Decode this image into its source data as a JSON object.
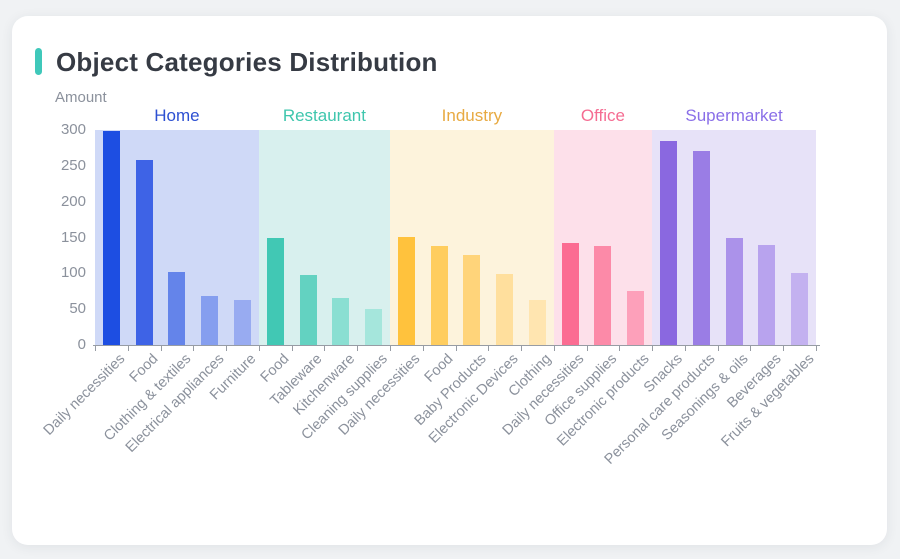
{
  "page": {
    "background": "#f0f2f4",
    "card_background": "#ffffff"
  },
  "header": {
    "title": "Object Categories Distribution",
    "accent_color": "#3fc8ba",
    "title_color": "#363b44"
  },
  "chart_data": {
    "type": "bar",
    "title": "Object Categories Distribution",
    "xlabel": "",
    "ylabel": "Amount",
    "ylim": [
      0,
      300
    ],
    "y_ticks": [
      0,
      50,
      100,
      150,
      200,
      250,
      300
    ],
    "grid": false,
    "legend_position": "none",
    "axis_color": "#979ca4",
    "text_color": "#8b919c",
    "groups": [
      {
        "name": "Home",
        "label_color": "#2d50d2",
        "panel_color": "#cfd9f7",
        "categories": [
          "Daily necessities",
          "Food",
          "Clothing & textiles",
          "Electrical appliances",
          "Furniture"
        ],
        "values": [
          298,
          258,
          102,
          69,
          63
        ],
        "bar_colors": [
          "#1d4ee2",
          "#3e63e6",
          "#6484ea",
          "#859eef",
          "#98abf1"
        ]
      },
      {
        "name": "Restaurant",
        "label_color": "#3ec6ad",
        "panel_color": "#d8f0ee",
        "categories": [
          "Food",
          "Tableware",
          "Kitchenware",
          "Cleaning supplies"
        ],
        "values": [
          149,
          97,
          65,
          50
        ],
        "bar_colors": [
          "#41c8b4",
          "#63d2c1",
          "#8adfd2",
          "#a5e6dc"
        ]
      },
      {
        "name": "Industry",
        "label_color": "#e8aa42",
        "panel_color": "#fdf3dc",
        "categories": [
          "Daily necessities",
          "Food",
          "Baby Products",
          "Electronic Devices",
          "Clothing"
        ],
        "values": [
          151,
          138,
          126,
          99,
          63
        ],
        "bar_colors": [
          "#ffc23d",
          "#ffcd5e",
          "#ffd47a",
          "#ffdf9d",
          "#ffe5b0"
        ]
      },
      {
        "name": "Office",
        "label_color": "#f56c92",
        "panel_color": "#fde0ea",
        "categories": [
          "Daily necessities",
          "Office supplies",
          "Electronic products"
        ],
        "values": [
          143,
          138,
          75
        ],
        "bar_colors": [
          "#fb6c92",
          "#fc8aa8",
          "#fda0ba"
        ]
      },
      {
        "name": "Supermarket",
        "label_color": "#8a6fe8",
        "panel_color": "#e7e2f8",
        "categories": [
          "Snacks",
          "Personal care products",
          "Seasonings & oils",
          "Beverages",
          "Fruits & vegetables"
        ],
        "values": [
          285,
          271,
          149,
          140,
          101
        ],
        "bar_colors": [
          "#8a68e0",
          "#9a7de5",
          "#ab92ea",
          "#b8a3ee",
          "#c3b1f0"
        ]
      }
    ]
  }
}
